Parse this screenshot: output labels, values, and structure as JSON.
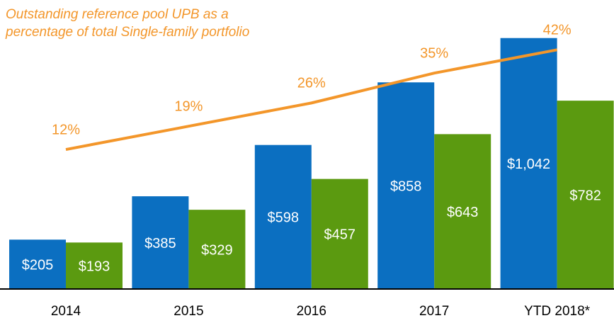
{
  "chart_data": {
    "type": "bar",
    "title": [
      "Outstanding reference pool UPB as a",
      "percentage of total Single-family portfolio"
    ],
    "categories": [
      "2014",
      "2015",
      "2016",
      "2017",
      "YTD 2018*"
    ],
    "series": [
      {
        "type": "bar",
        "color": "#0b6fc1",
        "values": [
          205,
          385,
          598,
          858,
          1042
        ],
        "value_labels": [
          "$205",
          "$385",
          "$598",
          "$858",
          "$1,042"
        ]
      },
      {
        "type": "bar",
        "color": "#5b9a10",
        "values": [
          193,
          329,
          457,
          643,
          782
        ],
        "value_labels": [
          "$193",
          "$329",
          "$457",
          "$643",
          "$782"
        ]
      },
      {
        "type": "line",
        "axis": "y2",
        "color": "#f3962a",
        "values": [
          12,
          19,
          26,
          35,
          42
        ],
        "value_labels": [
          "12%",
          "19%",
          "26%",
          "35%",
          "42%"
        ]
      }
    ],
    "ylim": [
      0,
      1200
    ],
    "y2lim": [
      -30,
      57
    ]
  }
}
